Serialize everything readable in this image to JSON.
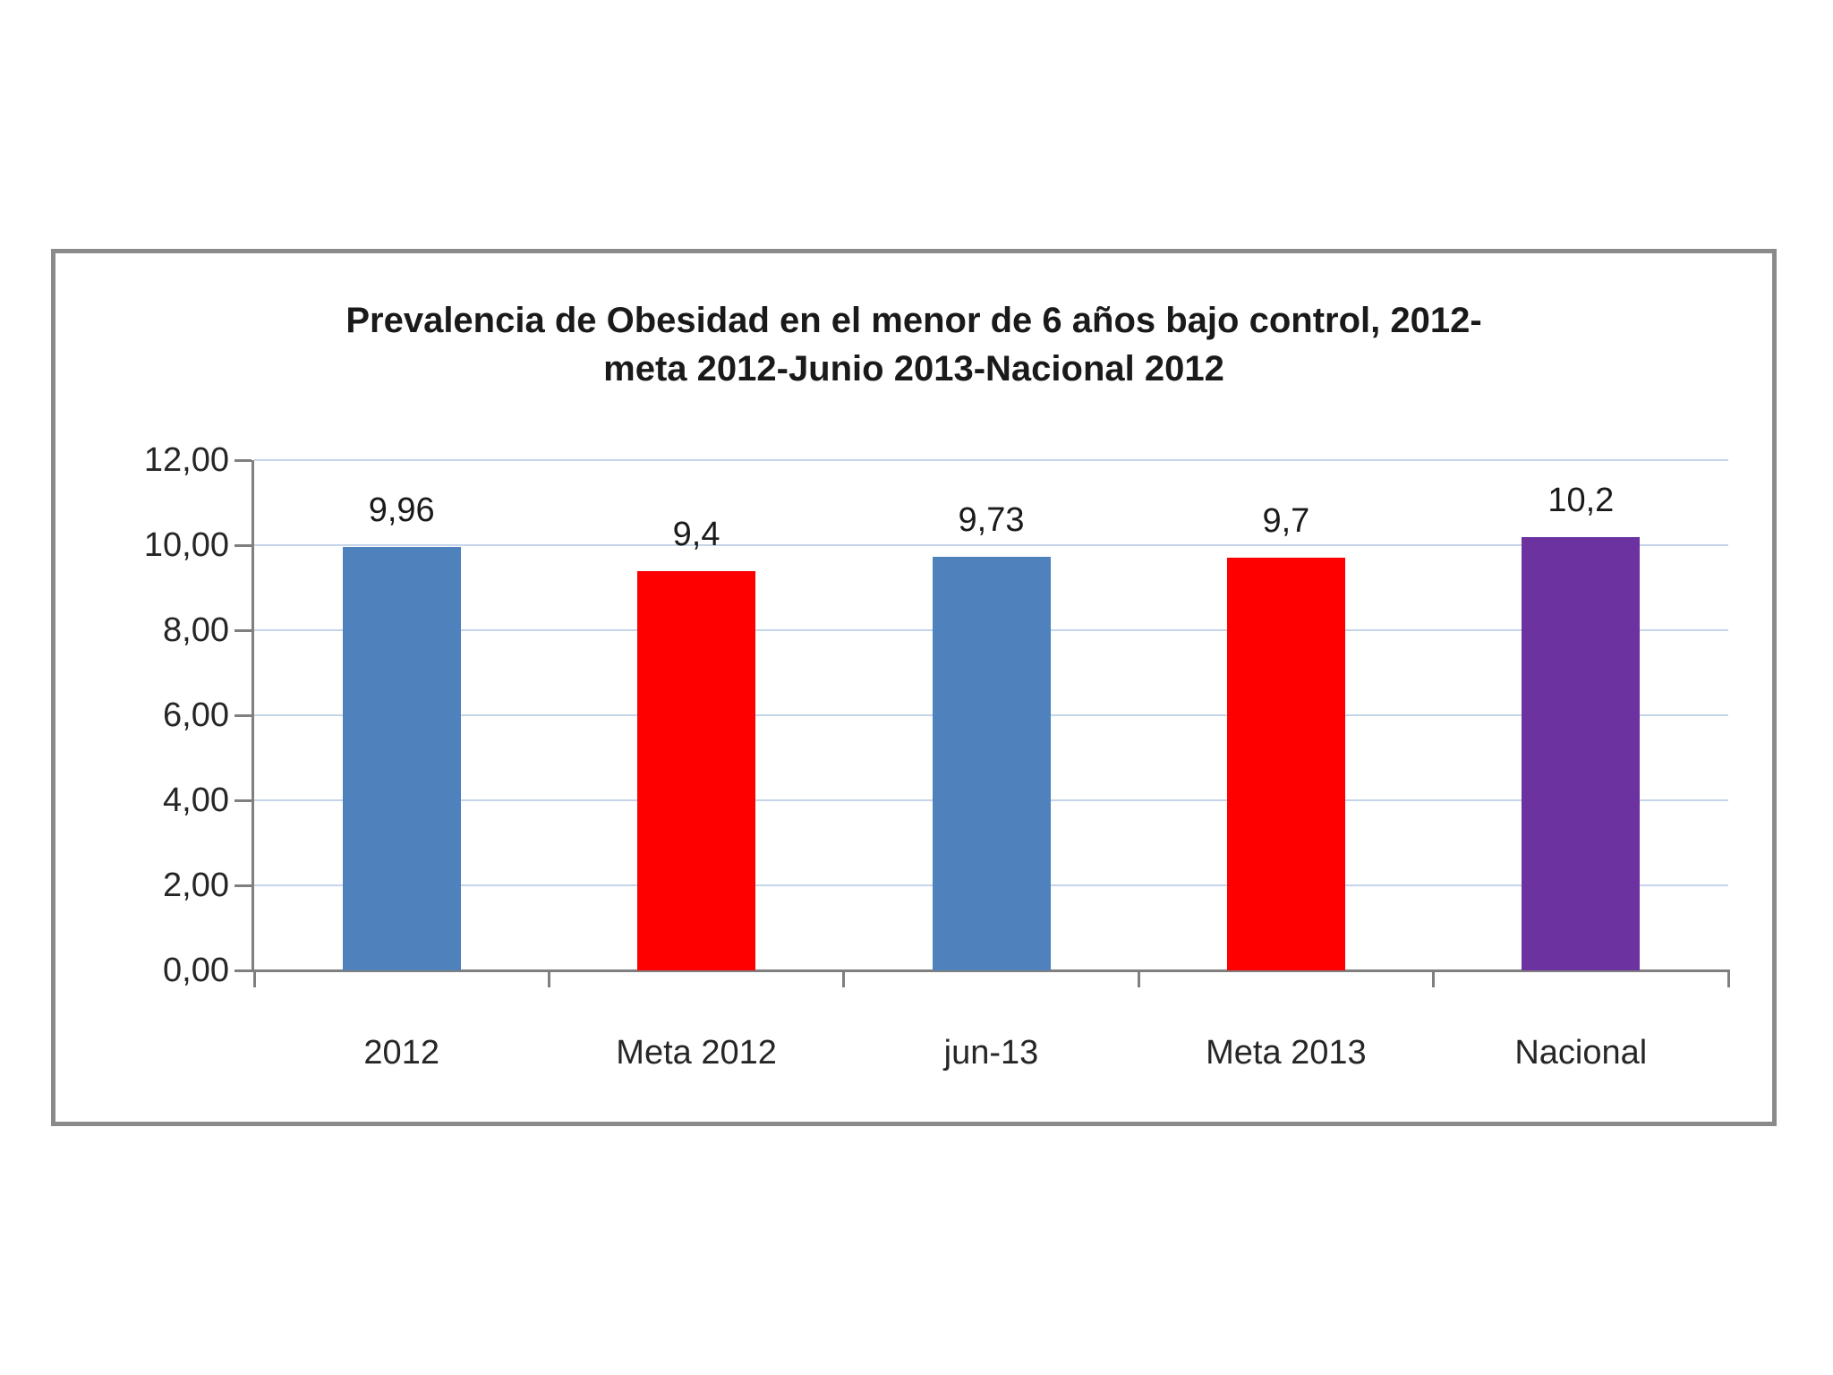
{
  "chart_data": {
    "type": "bar",
    "title": "Prevalencia de Obesidad en el menor de 6 años bajo control, 2012-meta 2012-Junio 2013-Nacional 2012",
    "title_lines": [
      "Prevalencia de Obesidad en el menor de 6 años bajo control, 2012-",
      "meta 2012-Junio 2013-Nacional 2012"
    ],
    "categories": [
      "2012",
      "Meta 2012",
      "jun-13",
      "Meta 2013",
      "Nacional"
    ],
    "values": [
      9.96,
      9.4,
      9.73,
      9.7,
      10.2
    ],
    "value_labels": [
      "9,96",
      "9,4",
      "9,73",
      "9,7",
      "10,2"
    ],
    "bar_colors": [
      "#4F81BD",
      "#FF0000",
      "#4F81BD",
      "#FF0000",
      "#6B32A0"
    ],
    "xlabel": "",
    "ylabel": "",
    "ylim": [
      0,
      12
    ],
    "ytick_step": 2,
    "ytick_labels": [
      "0,00",
      "2,00",
      "4,00",
      "6,00",
      "8,00",
      "10,00",
      "12,00"
    ],
    "grid": true,
    "legend_position": "none",
    "colors": {
      "gridline": "#C4D4E9",
      "axis": "#7F7F7F",
      "border": "#8A8A8A",
      "text": "#262626",
      "title_text": "#1a1a1a",
      "background": "#ffffff"
    }
  }
}
